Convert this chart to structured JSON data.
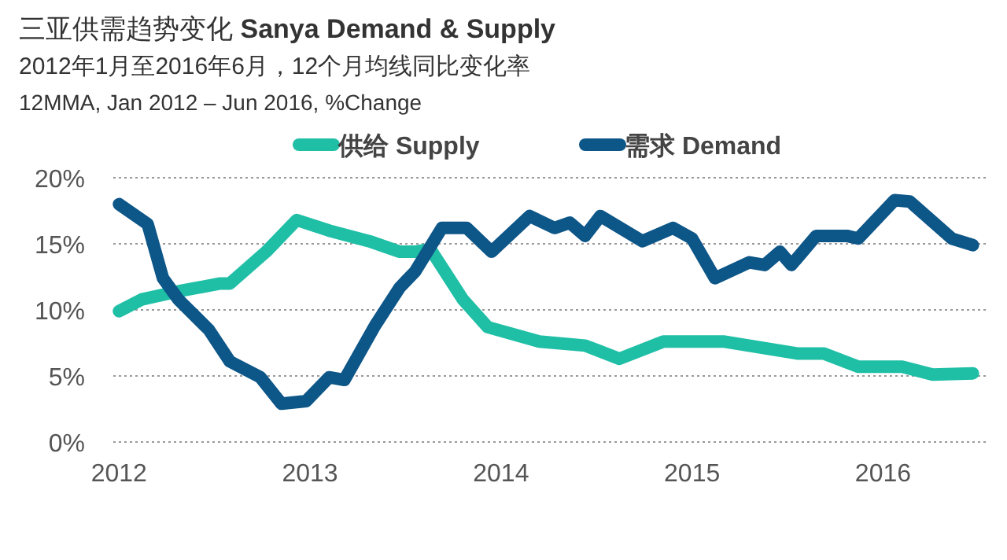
{
  "chart_data": {
    "type": "line",
    "title": "三亚供需趋势变化 **Sanya Demand & Supply**",
    "subtitle": "2012年1月至2016年6月，12个月均线同比变化率",
    "annotations": [
      "12MMA, Jan 2012 – Jun 2016, %Change"
    ],
    "xlim": [
      2011.97,
      2016.55
    ],
    "xticks": [
      2012,
      2013,
      2014,
      2015,
      2016
    ],
    "ylim": [
      0,
      20
    ],
    "yticks": [
      {
        "value": 0,
        "label": "0%"
      },
      {
        "value": 5,
        "label": "5%"
      },
      {
        "value": 10,
        "label": "10%"
      },
      {
        "value": 15,
        "label": "15%"
      },
      {
        "value": 20,
        "label": "20%"
      }
    ],
    "grid": "y",
    "legend": "top",
    "line_style": "solid",
    "series": [
      {
        "name": "供给 Supply",
        "color": "#1fbfa6",
        "x": [
          2012.0,
          2012.12,
          2012.31,
          2012.53,
          2012.58,
          2012.77,
          2012.93,
          2013.1,
          2013.31,
          2013.47,
          2013.55,
          2013.63,
          2013.8,
          2013.93,
          2014.2,
          2014.44,
          2014.62,
          2014.85,
          2015.17,
          2015.55,
          2015.69,
          2015.87,
          2016.1,
          2016.26,
          2016.47
        ],
        "values": [
          9.9,
          10.8,
          11.4,
          12.0,
          12.0,
          14.4,
          16.8,
          16.0,
          15.2,
          14.4,
          14.4,
          14.6,
          10.8,
          8.7,
          7.6,
          7.3,
          6.3,
          7.6,
          7.6,
          6.7,
          6.7,
          5.7,
          5.7,
          5.1,
          5.2
        ]
      },
      {
        "name": "需求 Demand",
        "color": "#0d5688",
        "x": [
          2012.0,
          2012.15,
          2012.23,
          2012.31,
          2012.47,
          2012.58,
          2012.74,
          2012.85,
          2012.98,
          2013.1,
          2013.18,
          2013.34,
          2013.47,
          2013.55,
          2013.69,
          2013.82,
          2013.95,
          2014.15,
          2014.28,
          2014.36,
          2014.44,
          2014.52,
          2014.74,
          2014.9,
          2015.0,
          2015.12,
          2015.3,
          2015.38,
          2015.46,
          2015.52,
          2015.65,
          2015.81,
          2015.87,
          2016.06,
          2016.14,
          2016.36,
          2016.47
        ],
        "values": [
          18.0,
          16.5,
          12.4,
          10.8,
          8.5,
          6.1,
          4.9,
          2.9,
          3.1,
          4.9,
          4.7,
          8.8,
          11.7,
          12.9,
          16.2,
          16.2,
          14.4,
          17.1,
          16.2,
          16.6,
          15.6,
          17.1,
          15.2,
          16.2,
          15.4,
          12.4,
          13.6,
          13.4,
          14.4,
          13.4,
          15.6,
          15.6,
          15.4,
          18.3,
          18.2,
          15.4,
          14.9
        ]
      }
    ]
  }
}
